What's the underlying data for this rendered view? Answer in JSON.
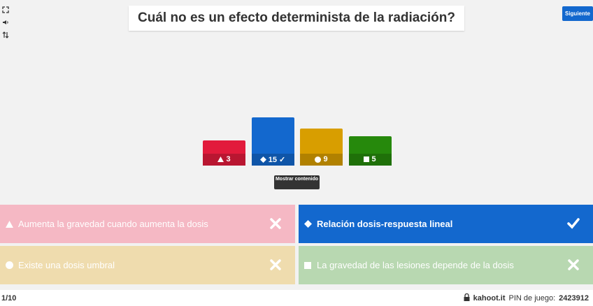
{
  "question": {
    "text": "Cuál no es un efecto determinista de la radiación?"
  },
  "header": {
    "next_label": "Siguiente"
  },
  "side_tools": [
    {
      "name": "fullscreen-icon",
      "glyph": "⤢"
    },
    {
      "name": "volume-icon",
      "glyph": "🔈"
    },
    {
      "name": "settings-icon",
      "glyph": "⇅"
    }
  ],
  "chart_data": {
    "type": "bar",
    "categories": [
      "triangle",
      "diamond",
      "circle",
      "square"
    ],
    "values": [
      3,
      15,
      9,
      5
    ],
    "colors": [
      "#e21b3c",
      "#1368ce",
      "#d89e00",
      "#26890c"
    ],
    "correct_index": 1,
    "correct_mark": "✓"
  },
  "show_content": {
    "label": "Mostrar contenido"
  },
  "answers": [
    {
      "shape": "triangle",
      "text": "Aumenta la gravedad cuando aumenta la dosis",
      "correct": false
    },
    {
      "shape": "diamond",
      "text": "Relación dosis-respuesta lineal",
      "correct": true
    },
    {
      "shape": "circle",
      "text": "Existe una dosis umbral",
      "correct": false
    },
    {
      "shape": "square",
      "text": "La gravedad de las lesiones depende de la dosis",
      "correct": false
    }
  ],
  "footer": {
    "progress": "1/10",
    "brand": "kahoot.it",
    "pin_label": "PIN de juego:",
    "pin": "2423912"
  }
}
